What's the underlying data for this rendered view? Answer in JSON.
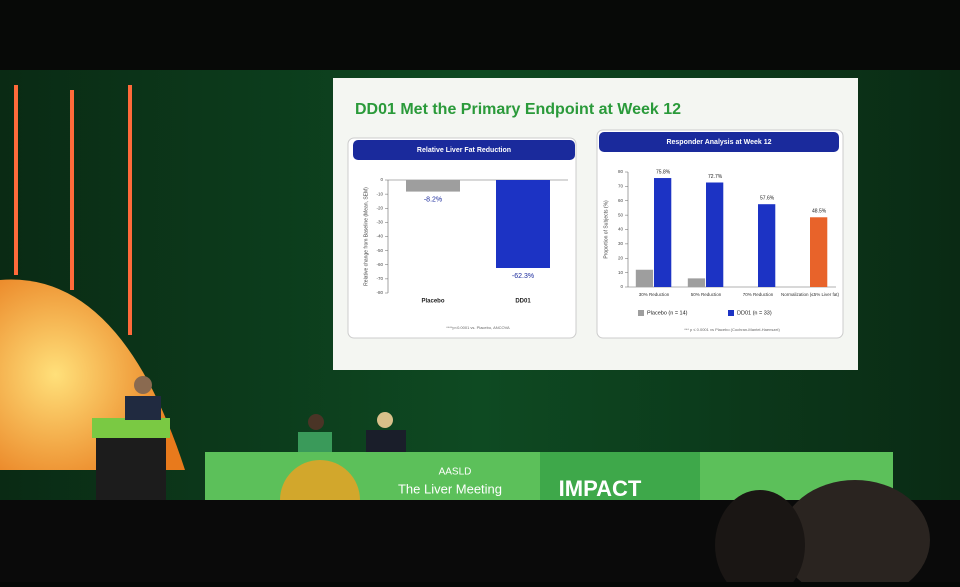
{
  "slide_title": "DD01 Met the Primary Endpoint at Week 12",
  "chart_data": [
    {
      "type": "bar",
      "title": "Relative Liver Fat Reduction",
      "y_label": "Relative change from Baseline (Mean, SEM)",
      "categories": [
        "Placebo",
        "DD01"
      ],
      "values": [
        -8.2,
        -62.3
      ],
      "value_labels": [
        "-8.2%",
        "-62.3%"
      ],
      "colors": [
        "#9e9e9e",
        "#1c33c4"
      ],
      "ylim": [
        -80,
        0
      ],
      "yticks": [
        0,
        -10,
        -20,
        -30,
        -40,
        -50,
        -60,
        -70,
        -80
      ],
      "footnote": "****p<0.0001 vs. Placebo, ANCOVA"
    },
    {
      "type": "grouped_bar",
      "title": "Responder Analysis at Week 12",
      "y_label": "Proportion of Subjects (%)",
      "categories": [
        "30% Reduction",
        "50% Reduction",
        "70% Reduction",
        "Normalization (≤5% Liver fat)"
      ],
      "series": [
        {
          "name": "Placebo (n = 14)",
          "color": "#9e9e9e",
          "values": [
            12,
            6,
            0,
            0
          ]
        },
        {
          "name": "DD01 (n = 33)",
          "color": "#1c33c4",
          "colors": [
            "#1c33c4",
            "#1c33c4",
            "#1c33c4",
            "#e8632a"
          ],
          "values": [
            75.8,
            72.7,
            57.6,
            48.5
          ],
          "value_labels": [
            "75.8%",
            "72.7%",
            "57.6%",
            "48.5%"
          ]
        }
      ],
      "ylim": [
        0,
        80
      ],
      "yticks": [
        0,
        10,
        20,
        30,
        40,
        50,
        60,
        70,
        80
      ],
      "legend": "bottom",
      "footnote": "*** p ≤ 0.0001 vs Placebo (Cochran-Mantel-Haenszel)"
    }
  ],
  "stage": {
    "org": "AASLD",
    "meeting": "The Liver Meeting",
    "theme": "IMPACT"
  }
}
